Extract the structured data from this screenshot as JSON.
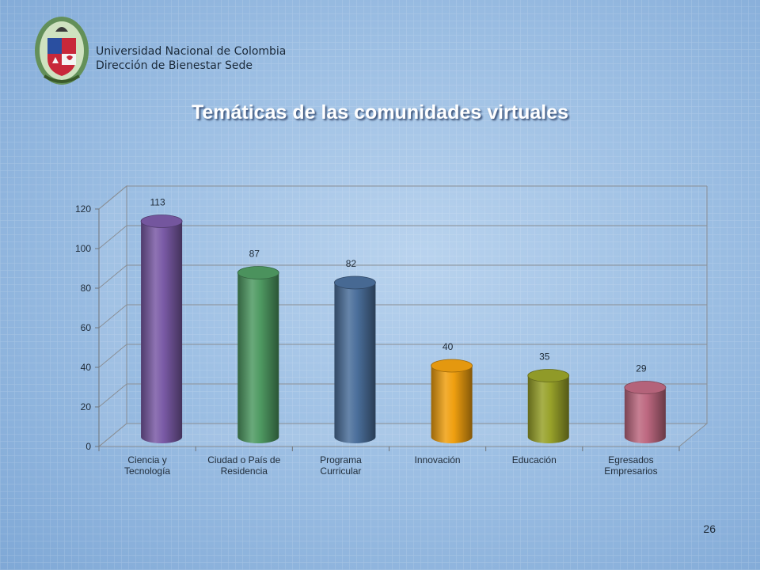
{
  "header": {
    "institution": "Universidad Nacional de Colombia",
    "department": "Dirección de Bienestar Sede"
  },
  "slide": {
    "title": "Temáticas de las comunidades virtuales",
    "page_number": "26"
  },
  "colors": {
    "Ciencia y Tecnología": "#7a5aa6",
    "Ciudad o País de Residencia": "#4f9a62",
    "Programa Curricular": "#4b6f9b",
    "Innovación": "#f0a010",
    "Educación": "#98a22a",
    "Egresados Empresarios": "#bd6880"
  },
  "chart_data": {
    "type": "bar",
    "title": "",
    "categories": [
      [
        "Ciencia y",
        "Tecnología"
      ],
      [
        "Ciudad o País de",
        "Residencia"
      ],
      [
        "Programa",
        "Curricular"
      ],
      [
        "Innovación"
      ],
      [
        "Educación"
      ],
      [
        "Egresados",
        "Empresarios"
      ]
    ],
    "values": [
      113,
      87,
      82,
      40,
      35,
      29
    ],
    "data_labels": [
      "113",
      "87",
      "82",
      "40",
      "35",
      "29"
    ],
    "ylim": [
      0,
      120
    ],
    "yticks": [
      0,
      20,
      40,
      60,
      80,
      100,
      120
    ],
    "ytick_labels": [
      "0",
      "20",
      "40",
      "60",
      "80",
      "100",
      "120"
    ],
    "grid": true,
    "style": "3d-cylinder",
    "legend": "none"
  }
}
